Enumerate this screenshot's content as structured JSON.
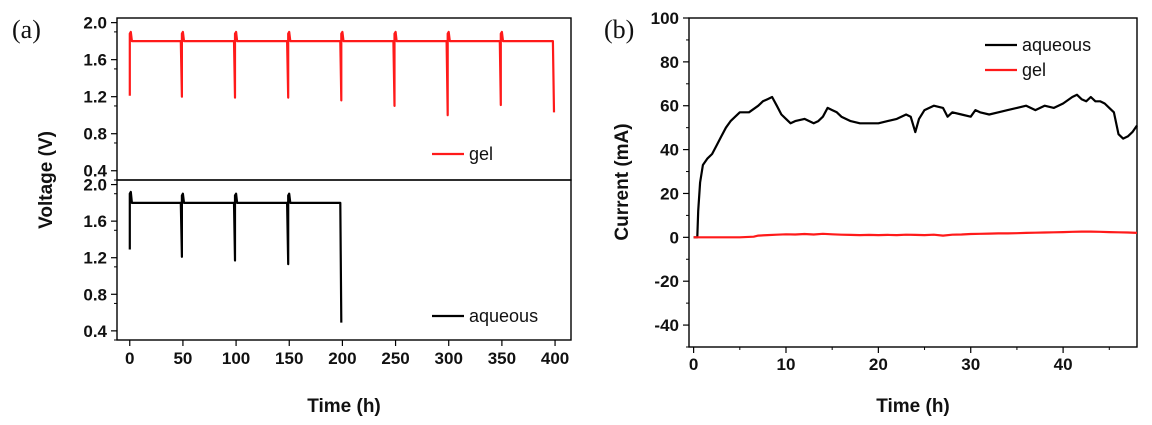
{
  "chart_data": [
    {
      "panel_label": "(a)",
      "type": "line",
      "xlabel": "Time (h)",
      "ylabel": "Voltage (V)",
      "xlim": [
        -12,
        415
      ],
      "xticks": [
        0,
        50,
        100,
        150,
        200,
        250,
        300,
        350,
        400
      ],
      "subplots": [
        {
          "ylim": [
            0.3,
            2.05
          ],
          "yticks": [
            "0.4",
            "0.8",
            "1.2",
            "1.6",
            "2.0"
          ],
          "legend_placement": "lower-right",
          "series": [
            {
              "name": "gel",
              "color": "#ff1a1a",
              "points": [
                [
                  0,
                  1.21
                ],
                [
                  0,
                  1.88
                ],
                [
                  1,
                  1.9
                ],
                [
                  2,
                  1.8
                ],
                [
                  48,
                  1.8
                ],
                [
                  49,
                  1.2
                ],
                [
                  49,
                  1.88
                ],
                [
                  50,
                  1.9
                ],
                [
                  51,
                  1.8
                ],
                [
                  98,
                  1.8
                ],
                [
                  99,
                  1.19
                ],
                [
                  99,
                  1.88
                ],
                [
                  100,
                  1.9
                ],
                [
                  101,
                  1.8
                ],
                [
                  148,
                  1.8
                ],
                [
                  149,
                  1.19
                ],
                [
                  149,
                  1.88
                ],
                [
                  150,
                  1.9
                ],
                [
                  151,
                  1.8
                ],
                [
                  198,
                  1.8
                ],
                [
                  199,
                  1.16
                ],
                [
                  199,
                  1.88
                ],
                [
                  200,
                  1.9
                ],
                [
                  201,
                  1.8
                ],
                [
                  248,
                  1.8
                ],
                [
                  249,
                  1.1
                ],
                [
                  249,
                  1.88
                ],
                [
                  250,
                  1.9
                ],
                [
                  251,
                  1.8
                ],
                [
                  298,
                  1.8
                ],
                [
                  299,
                  1.0
                ],
                [
                  299,
                  1.88
                ],
                [
                  300,
                  1.9
                ],
                [
                  301,
                  1.8
                ],
                [
                  348,
                  1.8
                ],
                [
                  349,
                  1.11
                ],
                [
                  349,
                  1.88
                ],
                [
                  350,
                  1.9
                ],
                [
                  351,
                  1.8
                ],
                [
                  398,
                  1.8
                ],
                [
                  399,
                  1.03
                ]
              ]
            }
          ]
        },
        {
          "ylim": [
            0.3,
            2.05
          ],
          "yticks": [
            "0.4",
            "0.8",
            "1.2",
            "1.6",
            "2.0"
          ],
          "legend_placement": "lower-right",
          "series": [
            {
              "name": "aqueous",
              "color": "#000000",
              "points": [
                [
                  0,
                  1.29
                ],
                [
                  0,
                  1.9
                ],
                [
                  1,
                  1.92
                ],
                [
                  2,
                  1.8
                ],
                [
                  48,
                  1.8
                ],
                [
                  49,
                  1.21
                ],
                [
                  49,
                  1.88
                ],
                [
                  50,
                  1.9
                ],
                [
                  51,
                  1.8
                ],
                [
                  98,
                  1.8
                ],
                [
                  99,
                  1.17
                ],
                [
                  99,
                  1.88
                ],
                [
                  100,
                  1.9
                ],
                [
                  101,
                  1.8
                ],
                [
                  148,
                  1.8
                ],
                [
                  149,
                  1.13
                ],
                [
                  149,
                  1.88
                ],
                [
                  150,
                  1.9
                ],
                [
                  151,
                  1.8
                ],
                [
                  198,
                  1.8
                ],
                [
                  199,
                  0.49
                ]
              ]
            }
          ]
        }
      ]
    },
    {
      "panel_label": "(b)",
      "type": "line",
      "xlabel": "Time (h)",
      "ylabel": "Current (mA)",
      "xlim": [
        -0.5,
        48
      ],
      "ylim": [
        -50,
        100
      ],
      "xticks": [
        "0",
        "10",
        "20",
        "30",
        "40"
      ],
      "yticks": [
        "-40",
        "-20",
        "0",
        "20",
        "40",
        "60",
        "80",
        "100"
      ],
      "legend_placement": "top-right",
      "series": [
        {
          "name": "aqueous",
          "color": "#000000",
          "points": [
            [
              0,
              0
            ],
            [
              0.4,
              0
            ],
            [
              0.5,
              12
            ],
            [
              0.7,
              25
            ],
            [
              1,
              33
            ],
            [
              1.5,
              36
            ],
            [
              2,
              38
            ],
            [
              2.5,
              42
            ],
            [
              3,
              46
            ],
            [
              3.5,
              50
            ],
            [
              4,
              53
            ],
            [
              4.5,
              55
            ],
            [
              5,
              57
            ],
            [
              6,
              57
            ],
            [
              7,
              60
            ],
            [
              7.5,
              62
            ],
            [
              8,
              63
            ],
            [
              8.5,
              64
            ],
            [
              9,
              60
            ],
            [
              9.5,
              56
            ],
            [
              10,
              54
            ],
            [
              10.5,
              52
            ],
            [
              11,
              53
            ],
            [
              12,
              54
            ],
            [
              13,
              52
            ],
            [
              13.5,
              53
            ],
            [
              14,
              55
            ],
            [
              14.5,
              59
            ],
            [
              15,
              58
            ],
            [
              15.5,
              57
            ],
            [
              16,
              55
            ],
            [
              17,
              53
            ],
            [
              18,
              52
            ],
            [
              19,
              52
            ],
            [
              20,
              52
            ],
            [
              21,
              53
            ],
            [
              22,
              54
            ],
            [
              23,
              56
            ],
            [
              23.5,
              55
            ],
            [
              24,
              48
            ],
            [
              24.4,
              54
            ],
            [
              25,
              58
            ],
            [
              26,
              60
            ],
            [
              27,
              59
            ],
            [
              27.5,
              55
            ],
            [
              28,
              57
            ],
            [
              29,
              56
            ],
            [
              30,
              55
            ],
            [
              30.5,
              58
            ],
            [
              31,
              57
            ],
            [
              32,
              56
            ],
            [
              33,
              57
            ],
            [
              34,
              58
            ],
            [
              35,
              59
            ],
            [
              36,
              60
            ],
            [
              37,
              58
            ],
            [
              38,
              60
            ],
            [
              39,
              59
            ],
            [
              40,
              61
            ],
            [
              41,
              64
            ],
            [
              41.5,
              65
            ],
            [
              42,
              63
            ],
            [
              42.5,
              62
            ],
            [
              43,
              64
            ],
            [
              43.5,
              62
            ],
            [
              44,
              62
            ],
            [
              44.5,
              61
            ],
            [
              45,
              59
            ],
            [
              45.5,
              57
            ],
            [
              46,
              47
            ],
            [
              46.5,
              45
            ],
            [
              47,
              46
            ],
            [
              47.5,
              48
            ],
            [
              48,
              51
            ]
          ]
        },
        {
          "name": "gel",
          "color": "#ff1a1a",
          "points": [
            [
              0,
              0
            ],
            [
              2,
              0
            ],
            [
              4,
              0
            ],
            [
              5,
              0
            ],
            [
              6.5,
              0.3
            ],
            [
              7,
              0.8
            ],
            [
              8,
              1
            ],
            [
              9,
              1.2
            ],
            [
              10,
              1.4
            ],
            [
              11,
              1.3
            ],
            [
              12,
              1.5
            ],
            [
              13,
              1.3
            ],
            [
              14,
              1.6
            ],
            [
              15,
              1.4
            ],
            [
              16,
              1.2
            ],
            [
              17,
              1.1
            ],
            [
              18,
              1
            ],
            [
              19,
              1.1
            ],
            [
              20,
              1
            ],
            [
              21,
              1.1
            ],
            [
              22,
              1
            ],
            [
              23,
              1.2
            ],
            [
              24,
              1.1
            ],
            [
              25,
              1
            ],
            [
              26,
              1.2
            ],
            [
              27,
              0.8
            ],
            [
              28,
              1.2
            ],
            [
              29,
              1.3
            ],
            [
              30,
              1.5
            ],
            [
              31,
              1.6
            ],
            [
              32,
              1.7
            ],
            [
              33,
              1.8
            ],
            [
              34,
              1.8
            ],
            [
              35,
              1.9
            ],
            [
              36,
              2
            ],
            [
              37,
              2.1
            ],
            [
              38,
              2.2
            ],
            [
              39,
              2.3
            ],
            [
              40,
              2.4
            ],
            [
              41,
              2.5
            ],
            [
              42,
              2.6
            ],
            [
              43,
              2.6
            ],
            [
              44,
              2.5
            ],
            [
              45,
              2.4
            ],
            [
              46,
              2.3
            ],
            [
              47,
              2.2
            ],
            [
              48,
              2
            ]
          ]
        }
      ]
    }
  ]
}
